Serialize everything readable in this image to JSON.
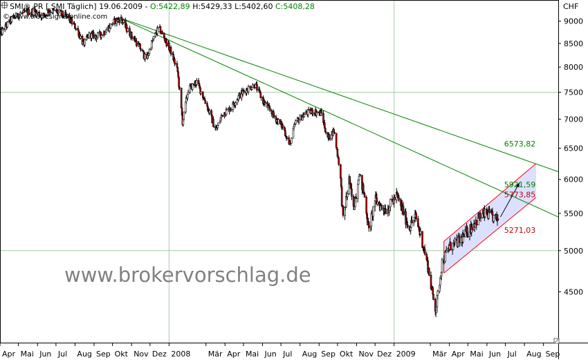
{
  "header": {
    "symbol_text": "SMI® PR [.SMI  Täglich] 19.06.2009 - ",
    "open_text": "O:5422,89",
    "high_text": "H:5429,33",
    "low_text": "L:5402,60",
    "close_text": "C:5408,28",
    "copyright_text": "© www.tradesignalonline.com",
    "currency": "CHF"
  },
  "watermark": "www.brokervorschlag.de",
  "colors": {
    "up": "#ffffff",
    "down": "#c00000",
    "candle_outline": "#000000",
    "trendline": "#008000",
    "channel_line": "#ff0000",
    "channel_fill": "#dce0ff",
    "grid": "#a6cba6",
    "label_green": "#008000",
    "label_red": "#c00000",
    "header_green": "#008000",
    "background": "#ffffff",
    "watermark": "#808080"
  },
  "chart_data": {
    "type": "candlestick",
    "title": "SMI® PR [.SMI Täglich] 19.06.2009",
    "currency": "CHF",
    "x_start": "2007-04-01",
    "x_end": "2009-09-25",
    "y_scale": "log",
    "ylim": [
      3950,
      9500
    ],
    "y_ticks": [
      4500,
      5000,
      5500,
      6000,
      6500,
      7000,
      7500,
      8000,
      8500,
      9000
    ],
    "y_tick_labels": [
      "4500",
      "5000",
      "5500",
      "6000",
      "6500",
      "7000",
      "7500",
      "8000",
      "8500",
      "9000"
    ],
    "grid_y": [
      5000,
      7500
    ],
    "x_ticks": [
      {
        "date": "2007-04-01",
        "label": "Apr"
      },
      {
        "date": "2007-05-01",
        "label": "Mai"
      },
      {
        "date": "2007-06-01",
        "label": "Jun"
      },
      {
        "date": "2007-07-01",
        "label": "Jul"
      },
      {
        "date": "2007-08-01",
        "label": "Aug"
      },
      {
        "date": "2007-09-01",
        "label": "Sep"
      },
      {
        "date": "2007-10-01",
        "label": "Okt"
      },
      {
        "date": "2007-11-01",
        "label": "Nov"
      },
      {
        "date": "2007-12-01",
        "label": "Dez"
      },
      {
        "date": "2008-01-01",
        "label": "2008",
        "grid": true
      },
      {
        "date": "2008-03-01",
        "label": "Mär"
      },
      {
        "date": "2008-04-01",
        "label": "Apr"
      },
      {
        "date": "2008-05-01",
        "label": "Mai"
      },
      {
        "date": "2008-06-01",
        "label": "Jun"
      },
      {
        "date": "2008-07-01",
        "label": "Jul"
      },
      {
        "date": "2008-08-01",
        "label": "Aug"
      },
      {
        "date": "2008-09-01",
        "label": "Sep"
      },
      {
        "date": "2008-10-01",
        "label": "Okt"
      },
      {
        "date": "2008-11-01",
        "label": "Nov"
      },
      {
        "date": "2008-12-01",
        "label": "Dez"
      },
      {
        "date": "2009-01-01",
        "label": "2009",
        "grid": true
      },
      {
        "date": "2009-03-01",
        "label": "Mär"
      },
      {
        "date": "2009-04-01",
        "label": "Apr"
      },
      {
        "date": "2009-05-01",
        "label": "Mai"
      },
      {
        "date": "2009-06-01",
        "label": "Jun"
      },
      {
        "date": "2009-07-01",
        "label": "Jul"
      },
      {
        "date": "2009-08-01",
        "label": "Aug"
      },
      {
        "date": "2009-09-01",
        "label": "Sep"
      }
    ],
    "price_path": [
      [
        "2007-04-01",
        8700
      ],
      [
        "2007-04-20",
        9050
      ],
      [
        "2007-05-05",
        9180
      ],
      [
        "2007-05-25",
        9230
      ],
      [
        "2007-06-10",
        9120
      ],
      [
        "2007-06-20",
        9250
      ],
      [
        "2007-07-05",
        9200
      ],
      [
        "2007-07-20",
        9100
      ],
      [
        "2007-08-05",
        8800
      ],
      [
        "2007-08-15",
        8480
      ],
      [
        "2007-08-25",
        8700
      ],
      [
        "2007-09-05",
        8650
      ],
      [
        "2007-09-15",
        8720
      ],
      [
        "2007-09-25",
        8850
      ],
      [
        "2007-10-05",
        9010
      ],
      [
        "2007-10-15",
        9050
      ],
      [
        "2007-10-25",
        8800
      ],
      [
        "2007-11-05",
        8600
      ],
      [
        "2007-11-15",
        8400
      ],
      [
        "2007-11-25",
        8150
      ],
      [
        "2007-12-05",
        8550
      ],
      [
        "2007-12-15",
        8850
      ],
      [
        "2007-12-25",
        8600
      ],
      [
        "2008-01-05",
        8300
      ],
      [
        "2008-01-15",
        7900
      ],
      [
        "2008-01-23",
        6950
      ],
      [
        "2008-02-01",
        7550
      ],
      [
        "2008-02-15",
        7700
      ],
      [
        "2008-03-01",
        7300
      ],
      [
        "2008-03-17",
        6800
      ],
      [
        "2008-03-28",
        7100
      ],
      [
        "2008-04-10",
        7200
      ],
      [
        "2008-04-25",
        7450
      ],
      [
        "2008-05-05",
        7550
      ],
      [
        "2008-05-20",
        7650
      ],
      [
        "2008-06-01",
        7350
      ],
      [
        "2008-06-20",
        7050
      ],
      [
        "2008-07-05",
        6850
      ],
      [
        "2008-07-15",
        6550
      ],
      [
        "2008-07-25",
        6950
      ],
      [
        "2008-08-10",
        7100
      ],
      [
        "2008-08-20",
        7150
      ],
      [
        "2008-09-05",
        7100
      ],
      [
        "2008-09-15",
        6650
      ],
      [
        "2008-09-25",
        6800
      ],
      [
        "2008-10-05",
        6150
      ],
      [
        "2008-10-10",
        5400
      ],
      [
        "2008-10-20",
        6000
      ],
      [
        "2008-10-27",
        5550
      ],
      [
        "2008-11-05",
        6100
      ],
      [
        "2008-11-15",
        5700
      ],
      [
        "2008-11-21",
        5250
      ],
      [
        "2008-12-01",
        5700
      ],
      [
        "2008-12-10",
        5600
      ],
      [
        "2008-12-20",
        5550
      ],
      [
        "2009-01-05",
        5750
      ],
      [
        "2009-01-15",
        5550
      ],
      [
        "2009-01-25",
        5300
      ],
      [
        "2009-02-05",
        5450
      ],
      [
        "2009-02-15",
        5150
      ],
      [
        "2009-02-25",
        4800
      ],
      [
        "2009-03-05",
        4450
      ],
      [
        "2009-03-10",
        4300
      ],
      [
        "2009-03-20",
        4850
      ],
      [
        "2009-04-01",
        5050
      ],
      [
        "2009-04-10",
        5080
      ],
      [
        "2009-04-20",
        5150
      ],
      [
        "2009-05-01",
        5250
      ],
      [
        "2009-05-10",
        5350
      ],
      [
        "2009-05-20",
        5450
      ],
      [
        "2009-06-01",
        5500
      ],
      [
        "2009-06-10",
        5450
      ],
      [
        "2009-06-19",
        5408.28
      ]
    ],
    "last_candle": {
      "date": "2009-06-19",
      "open": 5422.89,
      "high": 5429.33,
      "low": 5402.6,
      "close": 5408.28
    },
    "trendlines": [
      {
        "start": [
          "2007-10-12",
          9080
        ],
        "end": [
          "2009-09-25",
          6120
        ],
        "label": "6573,82",
        "label_at": [
          "2009-07-08",
          6573.82
        ]
      },
      {
        "start": [
          "2007-10-12",
          9080
        ],
        "end": [
          "2009-09-25",
          5450
        ],
        "label": "5921,59",
        "label_at": [
          "2009-07-08",
          5921.59
        ]
      }
    ],
    "channel": {
      "upper": [
        [
          "2009-03-23",
          5120
        ],
        [
          "2009-08-20",
          6250
        ]
      ],
      "lower": [
        [
          "2009-03-23",
          4720
        ],
        [
          "2009-08-20",
          5730
        ]
      ],
      "labels": [
        {
          "text": "5773,85",
          "at": [
            "2009-07-08",
            5773.85
          ]
        },
        {
          "text": "5271,03",
          "at": [
            "2009-07-08",
            5271.03
          ]
        }
      ]
    },
    "projection_arrow": {
      "from": [
        "2009-06-23",
        5450
      ],
      "to": [
        "2009-07-24",
        5950
      ]
    }
  }
}
